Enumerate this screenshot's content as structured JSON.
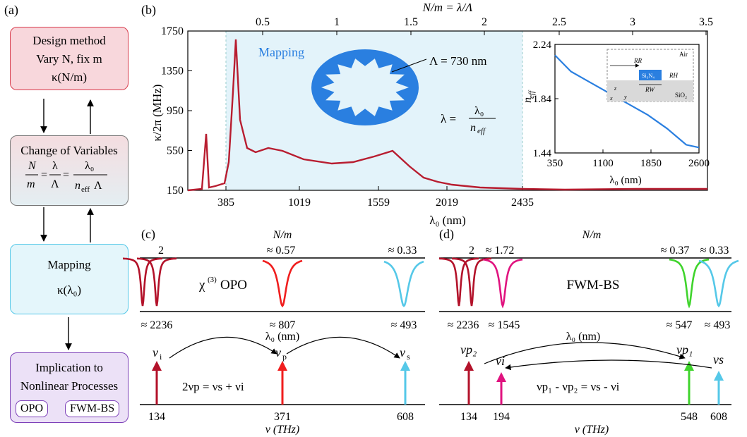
{
  "panels": {
    "a": "(a)",
    "b": "(b)",
    "c": "(c)",
    "d": "(d)"
  },
  "flow": {
    "design": {
      "line1": "Design method",
      "line2": "Vary N, fix m",
      "line3": "κ(N/m)",
      "color_border": "#d83b4c",
      "color_fill": "#f8d7dc"
    },
    "change": {
      "title": "Change of Variables",
      "color_border": "#777777"
    },
    "mapping": {
      "title": "Mapping",
      "formula": "κ(λ₀)",
      "color_border": "#55c8e8",
      "color_fill": "#e4f6fb"
    },
    "implication": {
      "line1": "Implication to",
      "line2": "Nonlinear Processes",
      "chip1": "OPO",
      "chip2": "FWM-BS",
      "color_border": "#7c3fb8",
      "color_fill": "#ece1f7"
    }
  },
  "plot_b": {
    "top_axis_title": "N/m = λ/Λ",
    "top_ticks": [
      "0.5",
      "1",
      "1.5",
      "2",
      "2.5",
      "3",
      "3.5"
    ],
    "y_label": "κ/2π (MHz)",
    "y_ticks": [
      "150",
      "550",
      "950",
      "1350",
      "1750"
    ],
    "x_ticks": [
      "385",
      "1019",
      "1559",
      "2019",
      "2435"
    ],
    "x_label": "λ₀ (nm)",
    "mapping_label": "Mapping",
    "ring_label": "Λ = 730 nm",
    "lambda_eq": "λ =",
    "lambda_num": "λ₀",
    "lambda_den": "n",
    "lambda_den_sub": "eff",
    "inset": {
      "y_label": "n",
      "y_label_sub": "eff",
      "y_ticks": [
        "1.44",
        "1.84",
        "2.24"
      ],
      "x_ticks": [
        "350",
        "1100",
        "1850",
        "2600"
      ],
      "x_label": "λ₀ (nm)",
      "schematic": {
        "air": "Air",
        "rr": "RR",
        "rh": "RH",
        "rw": "RW",
        "core": "Si₃N₄",
        "substrate": "SiO₂",
        "ax_z": "z",
        "ax_y": "y",
        "ax_x": "x"
      }
    },
    "curve_color": "#b81d30",
    "inset_color": "#2a7fe0",
    "shade_color": "#e3f3fa"
  },
  "chart_data": [
    {
      "type": "line",
      "title": "",
      "xlabel": "λ₀ (nm)",
      "ylabel": "κ/2π (MHz)",
      "ylim": [
        150,
        1750
      ],
      "x_top_label": "N/m = λ/Λ",
      "series": [
        {
          "x": [
            200,
            330,
            340,
            350,
            360,
            380,
            400,
            420,
            450,
            500,
            600,
            700,
            800,
            900,
            1000,
            1100,
            1200,
            1300,
            1400,
            1500,
            1600,
            1650,
            1700,
            1800,
            1900,
            2000,
            2100,
            2200,
            2300,
            2500,
            2800,
            3000
          ],
          "values": [
            200,
            200,
            750,
            260,
            200,
            230,
            380,
            900,
            1680,
            620,
            520,
            580,
            620,
            560,
            520,
            500,
            490,
            500,
            520,
            550,
            580,
            560,
            470,
            400,
            340,
            280,
            240,
            220,
            210,
            205,
            205,
            210
          ]
        }
      ]
    },
    {
      "type": "line",
      "title": "",
      "xlabel": "λ₀ (nm)",
      "ylabel": "n_eff",
      "ylim": [
        1.44,
        2.24
      ],
      "series": [
        {
          "x": [
            350,
            600,
            900,
            1200,
            1500,
            1800,
            2100,
            2400,
            2600
          ],
          "values": [
            2.16,
            2.04,
            1.96,
            1.88,
            1.8,
            1.72,
            1.62,
            1.5,
            1.48
          ]
        }
      ]
    }
  ],
  "panel_c": {
    "top_axis_title": "N/m",
    "top_labels": [
      "2",
      "≈ 0.57",
      "≈ 0.33"
    ],
    "process": "χ",
    "process_sup": "(3)",
    "process_tail": " OPO",
    "bottom_labels": [
      "≈ 2236",
      "≈ 807",
      "≈ 493"
    ],
    "lambda_axis": "λ₀ (nm)",
    "freq_labels": [
      "134",
      "371",
      "608"
    ],
    "freq_axis": "ν (THz)",
    "nu_i": "ν",
    "nu_i_sub": "i",
    "nu_p": "ν",
    "nu_p_sub": "p",
    "nu_s": "ν",
    "nu_s_sub": "s",
    "equation": "2νp = νs + νi"
  },
  "panel_d": {
    "top_axis_title": "N/m",
    "top_labels": [
      "2",
      "≈ 1.72",
      "≈ 0.37",
      "≈ 0.33"
    ],
    "process": "FWM-BS",
    "bottom_labels": [
      "≈ 2236",
      "≈ 1545",
      "≈ 547",
      "≈ 493"
    ],
    "lambda_axis": "λ₀ (nm)",
    "freq_labels": [
      "134",
      "194",
      "548",
      "608"
    ],
    "freq_axis": "ν (THz)",
    "nu_p2": "νp₂",
    "nu_i": "νi",
    "nu_p1": "νp₁",
    "nu_s": "νs",
    "equation": "νp₁ - νp₂ = νs - νi"
  },
  "colors": {
    "dark_red": "#b3122a",
    "red": "#f01e1e",
    "cyan": "#55c8e8",
    "magenta": "#e0137f",
    "green": "#3fd42c"
  }
}
